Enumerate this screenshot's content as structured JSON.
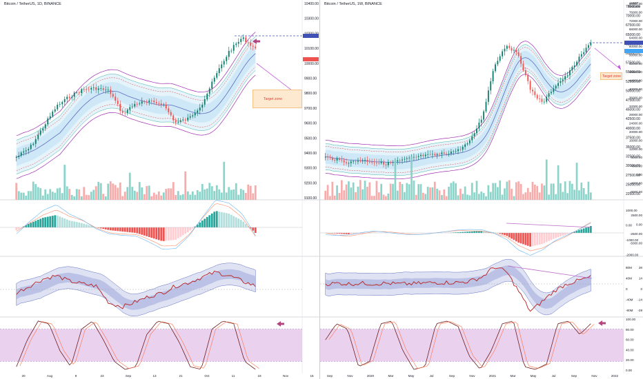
{
  "left": {
    "symbol": "Bitcoin / TetherUS, 1D, BINANCE",
    "currency_unit": "",
    "price_ticks": [
      "10400.00",
      "10300.00",
      "10200.00",
      "10100.00",
      "10000.00",
      "9900.00",
      "9800.00",
      "9700.00",
      "9600.00",
      "9500.00",
      "9400.00",
      "9300.00",
      "9200.00",
      "9100.00"
    ],
    "volume_ticks": [],
    "macd_ticks": [],
    "osc_ticks": [],
    "stoch_ticks": [],
    "time_ticks": [
      "20",
      "Aug",
      "9",
      "23",
      "Sep",
      "13",
      "21",
      "Oct",
      "11",
      "19",
      "Nov",
      "15"
    ],
    "target_zone_label": "Target zone",
    "last_price_badge": "",
    "mark_price_badge": ""
  },
  "right": {
    "symbol": "Bitcoin / TetherUS, 1W, BINANCE",
    "currency_unit": "USDT",
    "currency_sub": "Realtime",
    "price_ticks": [
      "72500.00",
      "70000.00",
      "67500.00",
      "65000.00",
      "62500.00",
      "60000.00",
      "57500.00",
      "55000.00",
      "52500.00",
      "50000.00",
      "47500.00",
      "45000.00",
      "42500.00",
      "40000.00",
      "37500.00",
      "35000.00",
      "32500.00",
      "30000.00",
      "27500.00",
      "25000.00",
      "22500.00"
    ],
    "axis2_ticks": [
      "80000.00",
      "76000.00",
      "72000.00",
      "68000.00",
      "64000.00",
      "60000.00",
      "56000.00",
      "52000.00",
      "48000.00",
      "44000.00",
      "40000.00",
      "36000.00",
      "32000.00",
      "28000.00",
      "24000.00",
      "20000.00",
      "16000.00",
      "12000.00",
      "8000.00",
      "4000.00",
      "0.00",
      "-4000.00",
      "-8000.00"
    ],
    "macd_ticks": [
      "1000.00",
      "0.00",
      "-1000.00",
      "-2000.00"
    ],
    "macd_ticks2": [
      "2500.00",
      "0.00",
      "-2500.00",
      "-5000.00"
    ],
    "osc_ticks": [
      "80M",
      "40M",
      "0",
      "-40M",
      "-80M"
    ],
    "osc_ticks2": [
      "28",
      "14",
      "0",
      "-14",
      "-28"
    ],
    "stoch_ticks": [
      "100.00",
      "80.00",
      "60.00",
      "40.00",
      "20.00",
      "0.00"
    ],
    "time_ticks": [
      "Sep",
      "Nov",
      "2020",
      "Mar",
      "May",
      "Jul",
      "Sep",
      "Nov",
      "2021",
      "Mar",
      "May",
      "Jul",
      "Sep",
      "Nov",
      "2022"
    ],
    "target_zone_label": "Target zone",
    "last_price_badge": "",
    "mark_price_badge": ""
  },
  "colors": {
    "up": "#26a69a",
    "up_dark": "#0c7e6b",
    "down": "#ef5350",
    "band_fill": "#cfe9f7",
    "band_line": "#9c27b0",
    "stoch_fill": "#e1bee7",
    "macd_signal": "#ff8a65",
    "macd_line": "#64b5f6",
    "osc_line": "#b71c1c",
    "accent": "#b3457f"
  },
  "chart_data": [
    {
      "type": "candlestick",
      "title": "Bitcoin / TetherUS, 1D, BINANCE",
      "x": [
        "20",
        "Aug",
        "9",
        "23",
        "Sep",
        "13",
        "21",
        "Oct",
        "11",
        "19"
      ],
      "close": [
        9330,
        9600,
        9760,
        9850,
        9720,
        9680,
        9620,
        9800,
        10180,
        10020
      ],
      "ylim": [
        9080,
        10430
      ]
    },
    {
      "type": "candlestick",
      "title": "Bitcoin / TetherUS, 1W, BINANCE",
      "x": [
        "Sep",
        "Nov",
        "2020",
        "Mar",
        "May",
        "Jul",
        "Sep",
        "Nov",
        "2021",
        "Mar",
        "May",
        "Jul",
        "Sep",
        "Nov"
      ],
      "close": [
        9000,
        9500,
        8500,
        7000,
        9500,
        10000,
        11000,
        18000,
        40000,
        58000,
        36000,
        33000,
        43000,
        58000
      ],
      "ylim": [
        21000,
        73000
      ]
    }
  ]
}
